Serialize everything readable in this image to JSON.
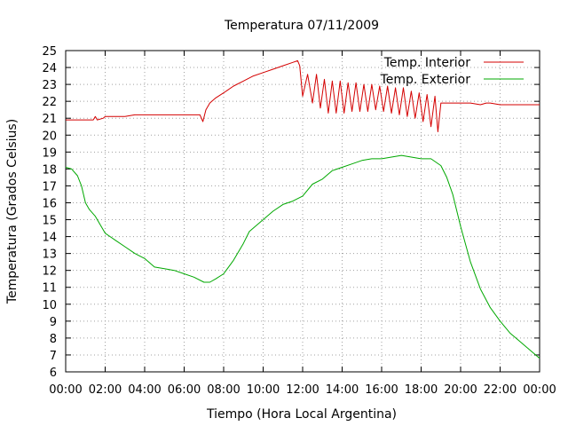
{
  "chart_data": {
    "type": "line",
    "title": "Temperatura 07/11/2009",
    "xlabel": "Tiempo (Hora Local Argentina)",
    "ylabel": "Temperatura (Grados Celsius)",
    "xlim": [
      0,
      24
    ],
    "ylim": [
      6,
      25
    ],
    "grid": true,
    "legend_position": "top-right",
    "x_tick_labels": [
      "00:00",
      "02:00",
      "04:00",
      "06:00",
      "08:00",
      "10:00",
      "12:00",
      "14:00",
      "16:00",
      "18:00",
      "20:00",
      "22:00",
      "00:00"
    ],
    "y_ticks": [
      6,
      7,
      8,
      9,
      10,
      11,
      12,
      13,
      14,
      15,
      16,
      17,
      18,
      19,
      20,
      21,
      22,
      23,
      24,
      25
    ],
    "series": [
      {
        "name": "Temp. Interior",
        "color": "#d40000",
        "x": [
          0,
          0.5,
          1.0,
          1.4,
          1.5,
          1.6,
          1.9,
          2.0,
          2.5,
          3.0,
          3.5,
          4.0,
          4.5,
          5.0,
          5.5,
          6.0,
          6.5,
          6.8,
          6.95,
          7.1,
          7.3,
          7.6,
          8.0,
          8.5,
          9.0,
          9.5,
          10.0,
          10.5,
          11.0,
          11.5,
          11.75,
          11.85,
          12.0,
          12.25,
          12.5,
          12.7,
          12.9,
          13.1,
          13.3,
          13.5,
          13.7,
          13.9,
          14.1,
          14.3,
          14.5,
          14.7,
          14.9,
          15.1,
          15.3,
          15.5,
          15.7,
          15.9,
          16.1,
          16.3,
          16.5,
          16.7,
          16.9,
          17.1,
          17.3,
          17.5,
          17.7,
          17.9,
          18.1,
          18.3,
          18.5,
          18.7,
          18.85,
          19.0,
          19.2,
          19.5,
          20.0,
          20.5,
          21.0,
          21.3,
          21.5,
          22.0,
          22.5,
          23.0,
          23.5,
          24.0
        ],
        "values": [
          20.9,
          20.9,
          20.9,
          20.9,
          21.1,
          20.9,
          21.0,
          21.1,
          21.1,
          21.1,
          21.2,
          21.2,
          21.2,
          21.2,
          21.2,
          21.2,
          21.2,
          21.2,
          20.8,
          21.5,
          21.9,
          22.2,
          22.5,
          22.9,
          23.2,
          23.5,
          23.7,
          23.9,
          24.1,
          24.3,
          24.4,
          24.1,
          22.3,
          23.6,
          21.9,
          23.6,
          21.6,
          23.3,
          21.3,
          23.2,
          21.3,
          23.2,
          21.3,
          23.1,
          21.4,
          23.1,
          21.4,
          23.0,
          21.4,
          23.0,
          21.5,
          22.9,
          21.4,
          22.9,
          21.3,
          22.8,
          21.2,
          22.8,
          21.1,
          22.6,
          21.0,
          22.5,
          20.8,
          22.4,
          20.5,
          22.3,
          20.2,
          21.9,
          21.9,
          21.9,
          21.9,
          21.9,
          21.8,
          21.9,
          21.9,
          21.8,
          21.8,
          21.8,
          21.8,
          21.8
        ]
      },
      {
        "name": "Temp. Exterior",
        "color": "#00a800",
        "x": [
          0,
          0.3,
          0.6,
          0.8,
          1.0,
          1.2,
          1.5,
          2.0,
          2.5,
          3.0,
          3.5,
          4.0,
          4.5,
          5.0,
          5.5,
          6.0,
          6.5,
          7.0,
          7.3,
          7.6,
          8.0,
          8.5,
          9.0,
          9.3,
          9.6,
          10.0,
          10.5,
          11.0,
          11.5,
          12.0,
          12.5,
          13.0,
          13.5,
          14.0,
          14.5,
          15.0,
          15.5,
          16.0,
          16.5,
          17.0,
          17.5,
          18.0,
          18.5,
          19.0,
          19.3,
          19.6,
          20.0,
          20.5,
          21.0,
          21.5,
          22.0,
          22.5,
          23.0,
          23.5,
          24.0
        ],
        "values": [
          18.1,
          18.0,
          17.6,
          17.0,
          16.0,
          15.6,
          15.2,
          14.2,
          13.8,
          13.4,
          13.0,
          12.7,
          12.2,
          12.1,
          12.0,
          11.8,
          11.6,
          11.3,
          11.3,
          11.5,
          11.8,
          12.6,
          13.6,
          14.3,
          14.6,
          15.0,
          15.5,
          15.9,
          16.1,
          16.4,
          17.1,
          17.4,
          17.9,
          18.1,
          18.3,
          18.5,
          18.6,
          18.6,
          18.7,
          18.8,
          18.7,
          18.6,
          18.6,
          18.2,
          17.5,
          16.5,
          14.6,
          12.5,
          10.9,
          9.8,
          9.0,
          8.3,
          7.8,
          7.3,
          6.8
        ]
      }
    ]
  }
}
